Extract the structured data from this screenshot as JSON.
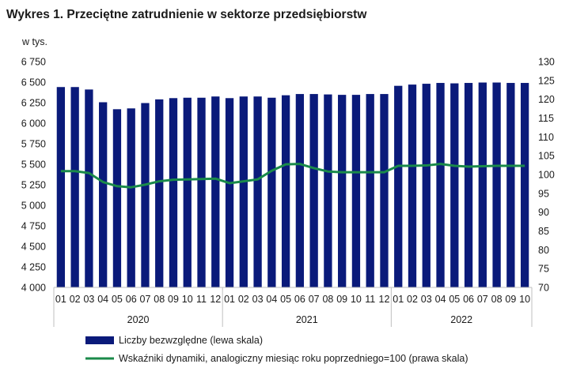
{
  "title": "Wykres 1. Przeciętne zatrudnienie w sektorze przedsiębiorstw",
  "colors": {
    "bars": "#0a1a7a",
    "line": "#1a8a4a",
    "grid": "#d9d9d9",
    "axis": "#bfbfbf"
  },
  "chart_data": {
    "type": "bar",
    "left_axis": {
      "unit_label": "w tys.",
      "min": 4000,
      "max": 6750,
      "step": 250,
      "ticks": [
        "4 000",
        "4 250",
        "4 500",
        "4 750",
        "5 000",
        "5 250",
        "5 500",
        "5 750",
        "6 000",
        "6 250",
        "6 500",
        "6 750"
      ]
    },
    "right_axis": {
      "min": 70,
      "max": 130,
      "step": 5,
      "ticks": [
        "70",
        "75",
        "80",
        "85",
        "90",
        "95",
        "100",
        "105",
        "110",
        "115",
        "120",
        "125",
        "130"
      ]
    },
    "months": [
      "01",
      "02",
      "03",
      "04",
      "05",
      "06",
      "07",
      "08",
      "09",
      "10",
      "11",
      "12",
      "01",
      "02",
      "03",
      "04",
      "05",
      "06",
      "07",
      "08",
      "09",
      "10",
      "11",
      "12",
      "01",
      "02",
      "03",
      "04",
      "05",
      "06",
      "07",
      "08",
      "09",
      "10"
    ],
    "years": [
      {
        "label": "2020",
        "count": 12
      },
      {
        "label": "2021",
        "count": 12
      },
      {
        "label": "2022",
        "count": 10
      }
    ],
    "series": [
      {
        "name": "Liczby bezwzględne (lewa skala)",
        "type": "bar",
        "axis": "left",
        "values": [
          6440,
          6440,
          6410,
          6255,
          6170,
          6180,
          6245,
          6290,
          6305,
          6310,
          6310,
          6325,
          6305,
          6325,
          6325,
          6310,
          6340,
          6355,
          6355,
          6350,
          6345,
          6345,
          6355,
          6355,
          6455,
          6470,
          6480,
          6490,
          6485,
          6490,
          6495,
          6495,
          6490,
          6490
        ]
      },
      {
        "name": "Wskaźniki dynamiki, analogiczny miesiąc roku poprzedniego=100 (prawa skala)",
        "type": "line",
        "axis": "right",
        "values": [
          100.9,
          100.9,
          100.4,
          98.0,
          96.9,
          96.6,
          97.3,
          98.2,
          98.6,
          98.7,
          98.8,
          98.9,
          97.7,
          98.2,
          98.7,
          101.0,
          102.7,
          102.8,
          101.7,
          100.8,
          100.6,
          100.6,
          100.6,
          100.6,
          102.3,
          102.3,
          102.4,
          102.8,
          102.3,
          102.1,
          102.2,
          102.3,
          102.3,
          102.3
        ]
      }
    ],
    "legend_position": "bottom",
    "grid": false
  }
}
